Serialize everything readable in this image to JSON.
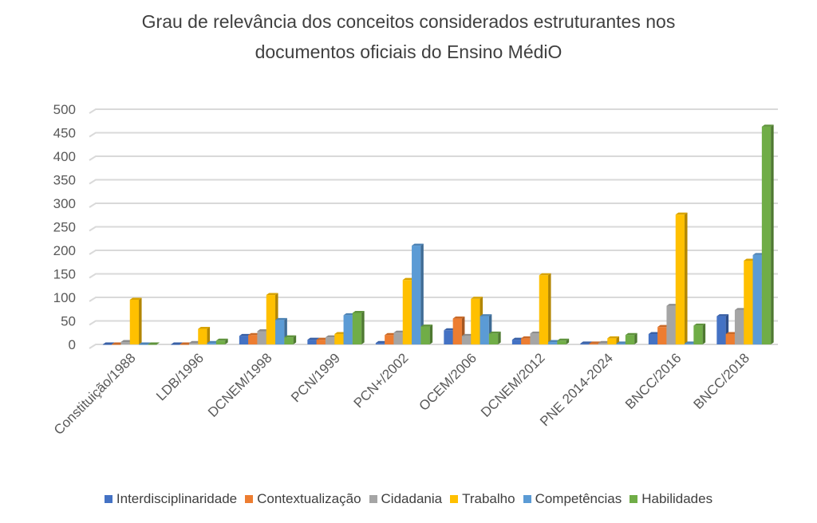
{
  "chart_data": {
    "type": "bar",
    "title": "Grau de relevância dos conceitos considerados estruturantes nos documentos oficiais do Ensino MédiO",
    "title_lines": [
      "Grau de relevância dos conceitos considerados estruturantes nos",
      "documentos oficiais do Ensino MédiO"
    ],
    "categories": [
      "Constituição/1988",
      "LDB/1996",
      "DCNEM/1998",
      "PCN/1999",
      "PCN+/2002",
      "OCEM/2006",
      "DCNEM/2012",
      "PNE 2014-2024",
      "BNCC/2016",
      "BNCC/2018"
    ],
    "series": [
      {
        "name": "Interdisciplinaridade",
        "color": "#4472C4",
        "values": [
          0,
          0,
          18,
          10,
          3,
          30,
          10,
          2,
          22,
          60
        ]
      },
      {
        "name": "Contextualização",
        "color": "#ED7D31",
        "values": [
          0,
          0,
          20,
          10,
          20,
          55,
          13,
          2,
          37,
          22
        ]
      },
      {
        "name": "Cidadania",
        "color": "#A5A5A5",
        "values": [
          5,
          3,
          28,
          15,
          25,
          18,
          23,
          3,
          82,
          73
        ]
      },
      {
        "name": "Trabalho",
        "color": "#FFC000",
        "values": [
          95,
          33,
          105,
          22,
          137,
          97,
          147,
          13,
          276,
          178
        ]
      },
      {
        "name": "Competências",
        "color": "#5B9BD5",
        "values": [
          0,
          3,
          52,
          62,
          210,
          60,
          5,
          2,
          2,
          190
        ]
      },
      {
        "name": "Habilidades",
        "color": "#70AD47",
        "values": [
          0,
          8,
          15,
          67,
          38,
          23,
          8,
          20,
          40,
          463
        ]
      }
    ],
    "ylim": [
      0,
      500
    ],
    "yticks": [
      0,
      50,
      100,
      150,
      200,
      250,
      300,
      350,
      400,
      450,
      500
    ],
    "grid": true,
    "legend": "bottom",
    "xlabel": "",
    "ylabel": ""
  }
}
